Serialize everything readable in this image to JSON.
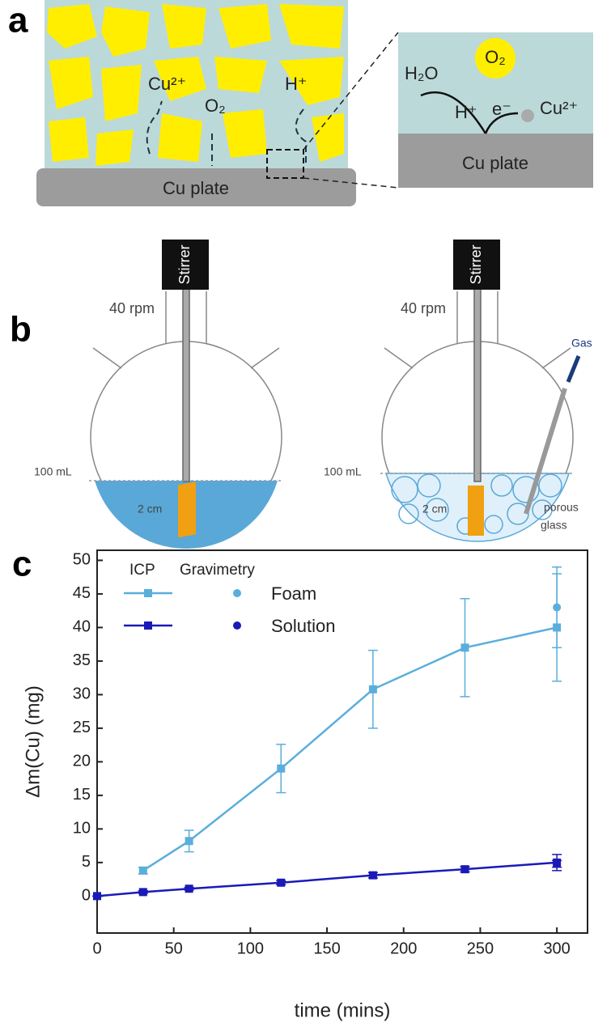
{
  "panels": {
    "a": {
      "letter": "a",
      "cu_ion": "Cu²⁺",
      "oxygen": "O₂",
      "proton": "H⁺",
      "plate": "Cu plate",
      "inset": {
        "water": "H₂O",
        "oxygen": "O₂",
        "proton": "H⁺",
        "electron": "e⁻",
        "cu_ion": "Cu²⁺",
        "plate": "Cu plate"
      }
    },
    "b": {
      "letter": "b",
      "left": {
        "stirrer": "Stirrer",
        "speed": "40 rpm",
        "volume": "100 mL",
        "size": "2 cm"
      },
      "right": {
        "stirrer": "Stirrer",
        "speed": "40 rpm",
        "volume": "100 mL",
        "size": "2 cm",
        "gas": "Gas",
        "porous": "porous",
        "glass": "glass"
      }
    },
    "c": {
      "letter": "c"
    }
  },
  "chart_data": {
    "type": "line",
    "x_label": "time (mins)",
    "y_label": "Δm(Cu) (mg)",
    "legend_headers": [
      "ICP",
      "Gravimetry"
    ],
    "xlim": [
      0,
      320
    ],
    "ylim": [
      -5.5,
      51.5
    ],
    "xticks": [
      0,
      50,
      100,
      150,
      200,
      250,
      300
    ],
    "yticks": [
      0,
      5,
      10,
      15,
      20,
      25,
      30,
      35,
      40,
      45,
      50
    ],
    "series": [
      {
        "name": "Foam",
        "color": "#5aaedc",
        "x": [
          30,
          60,
          120,
          180,
          240,
          300
        ],
        "values": [
          3.8,
          8.2,
          19,
          30.8,
          37,
          40
        ],
        "errors": [
          0.5,
          1.6,
          3.6,
          5.8,
          7.3,
          8
        ],
        "gravimetry": {
          "x": [
            300
          ],
          "values": [
            43
          ],
          "errors": [
            6
          ]
        }
      },
      {
        "name": "Solution",
        "color": "#1a1ab8",
        "x": [
          0,
          30,
          60,
          120,
          180,
          240,
          300
        ],
        "values": [
          0,
          0.6,
          1.1,
          2,
          3.1,
          4,
          5
        ],
        "errors": [
          0,
          0.2,
          0.2,
          0.3,
          0.4,
          0.4,
          1.2
        ],
        "gravimetry": {
          "x": [
            300
          ],
          "values": [
            4.8
          ],
          "errors": [
            0.5
          ]
        }
      }
    ]
  }
}
